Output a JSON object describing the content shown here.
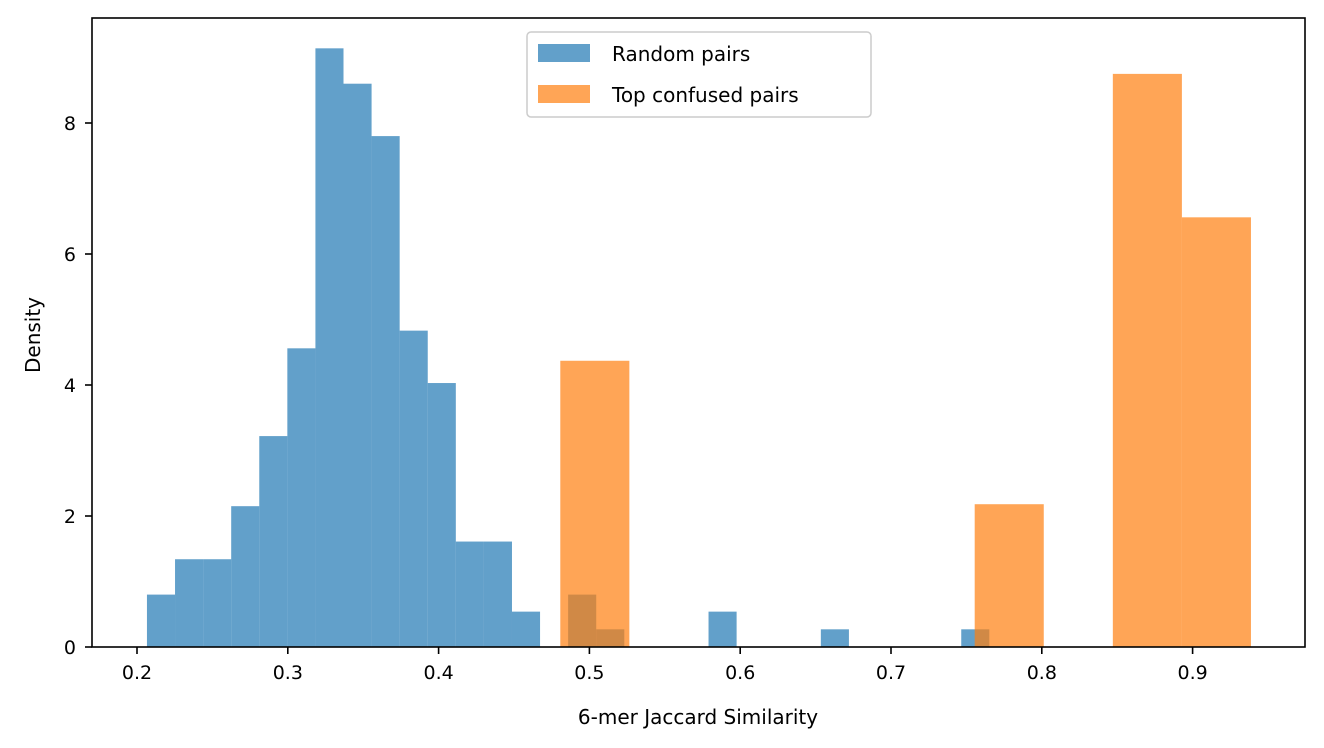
{
  "chart_data": {
    "type": "bar",
    "subtype": "histogram",
    "title": "",
    "xlabel": "6-mer Jaccard Similarity",
    "ylabel": "Density",
    "xlim": [
      0.17,
      0.975
    ],
    "ylim": [
      0,
      9.6
    ],
    "xticks": [
      "0.2",
      "0.3",
      "0.4",
      "0.5",
      "0.6",
      "0.7",
      "0.8",
      "0.9"
    ],
    "xtick_values": [
      0.2,
      0.3,
      0.4,
      0.5,
      0.6,
      0.7,
      0.8,
      0.9
    ],
    "yticks": [
      "0",
      "2",
      "4",
      "6",
      "8"
    ],
    "ytick_values": [
      0,
      2,
      4,
      6,
      8
    ],
    "grid": false,
    "legend_position": "top-center",
    "series": [
      {
        "name": "Random pairs",
        "color": "#1f77b4",
        "alpha": 0.7,
        "bin_start": 0.2066,
        "bin_width": 0.01862,
        "values": [
          0.8,
          1.34,
          1.34,
          2.15,
          3.22,
          4.56,
          9.14,
          8.6,
          7.8,
          4.83,
          4.03,
          1.61,
          1.61,
          0.54,
          0,
          0.8,
          0.27,
          0,
          0,
          0,
          0.54,
          0,
          0,
          0,
          0.27,
          0,
          0,
          0,
          0,
          0.27
        ]
      },
      {
        "name": "Top confused pairs",
        "color": "#ff7f0e",
        "alpha": 0.7,
        "bin_start": 0.4807,
        "bin_width": 0.0458,
        "values": [
          4.37,
          0,
          0,
          0,
          0,
          0,
          2.18,
          0,
          8.75,
          6.56
        ]
      }
    ]
  }
}
